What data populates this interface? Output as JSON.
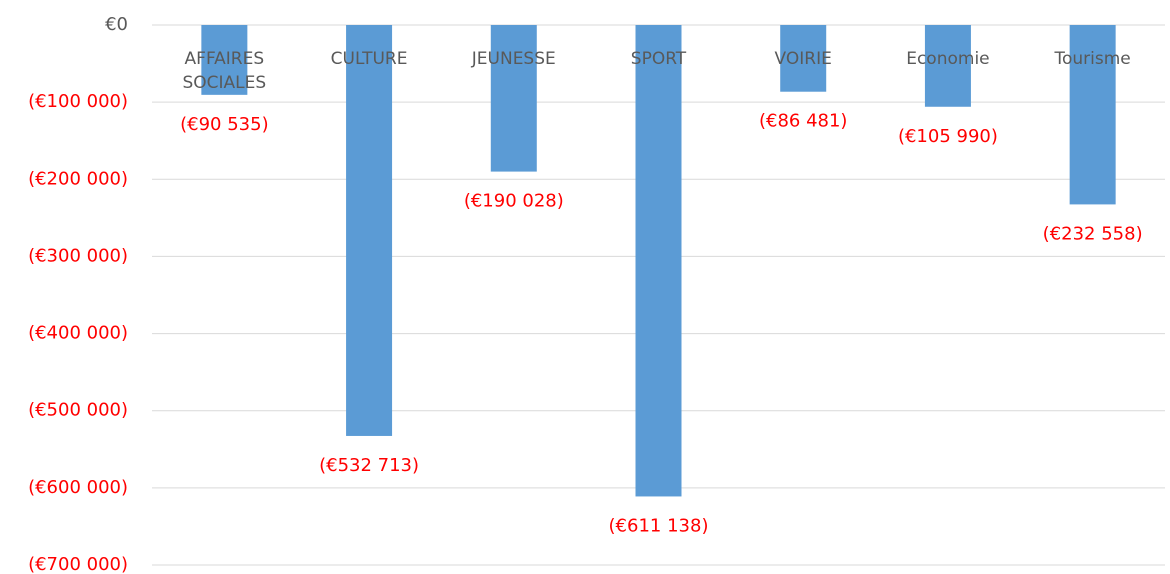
{
  "chart_data": {
    "type": "bar",
    "categories": [
      "AFFAIRES SOCIALES",
      "CULTURE",
      "JEUNESSE",
      "SPORT",
      "VOIRIE",
      "Economie",
      "Tourisme"
    ],
    "values": [
      -90535,
      -532713,
      -190028,
      -611138,
      -86481,
      -105990,
      -232558
    ],
    "value_labels": [
      "(€90 535)",
      "(€532 713)",
      "(€190 028)",
      "(€611 138)",
      "(€86 481)",
      "(€105 990)",
      "(€232 558)"
    ],
    "color": "#5b9bd5",
    "label_color": "#595959",
    "negative_label_color": "#ff0000",
    "ylim": [
      -700000,
      0
    ],
    "yticks": [
      {
        "value": 0,
        "label": "€0"
      },
      {
        "value": -100000,
        "label": "(€100 000)"
      },
      {
        "value": -200000,
        "label": "(€200 000)"
      },
      {
        "value": -300000,
        "label": "(€300 000)"
      },
      {
        "value": -400000,
        "label": "(€400 000)"
      },
      {
        "value": -500000,
        "label": "(€500 000)"
      },
      {
        "value": -600000,
        "label": "(€600 000)"
      },
      {
        "value": -700000,
        "label": "(€700 000)"
      }
    ],
    "grid": true
  }
}
